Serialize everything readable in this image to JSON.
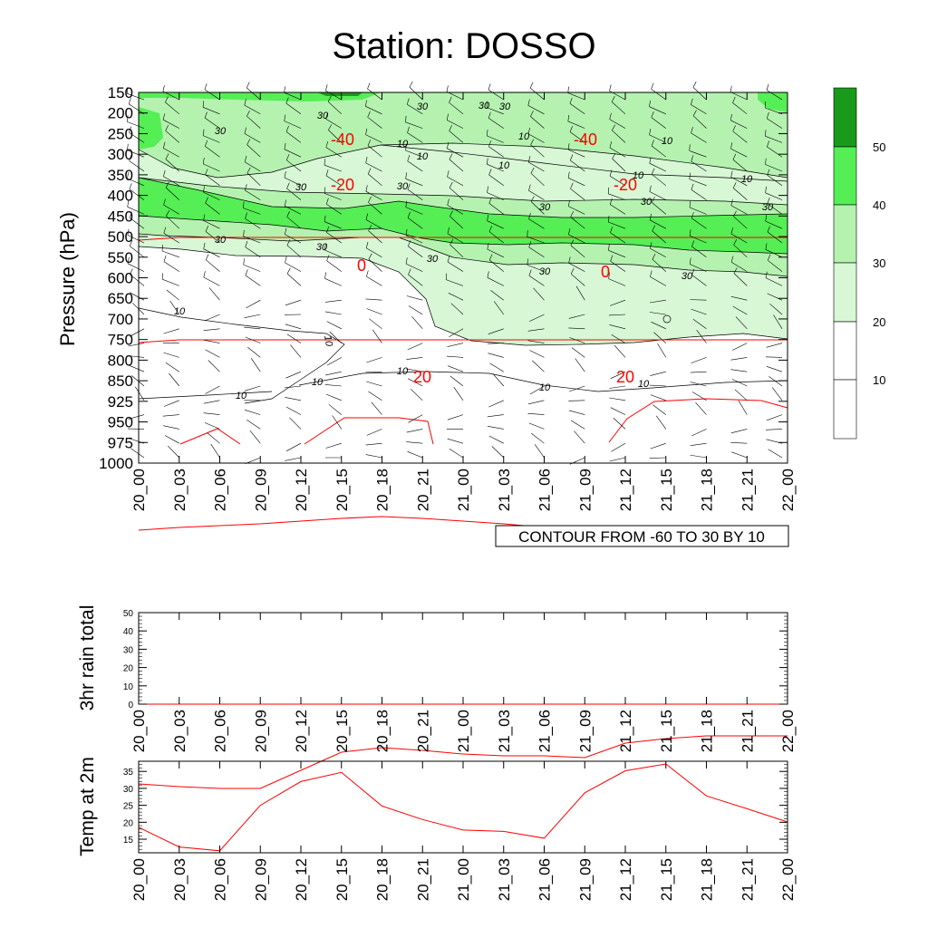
{
  "chart_data": [
    {
      "type": "heatmap",
      "title": "Station: DOSSO",
      "ylabel": "Pressure (hPa)",
      "y_ticks": [
        150,
        200,
        250,
        300,
        350,
        400,
        450,
        500,
        550,
        600,
        650,
        700,
        750,
        800,
        850,
        925,
        950,
        975,
        1000
      ],
      "x_ticks": [
        "20_00",
        "20_03",
        "20_06",
        "20_09",
        "20_12",
        "20_15",
        "20_18",
        "20_21",
        "21_00",
        "21_03",
        "21_06",
        "21_09",
        "21_12",
        "21_15",
        "21_18",
        "21_21",
        "22_00"
      ],
      "info_label": "CONTOUR FROM -60 TO 30 BY 10",
      "shading_colors": [
        "#ffffff",
        "#ffffff",
        "#d7f7d5",
        "#b5f2b0",
        "#55ee55",
        "#1a9a1a"
      ],
      "colorbar_ticks": [
        10,
        20,
        30,
        40,
        50
      ],
      "wind_contour_labels": [
        "10",
        "30"
      ],
      "temperature_contours": [
        {
          "label": "-40",
          "y": [
            265,
            262,
            262,
            262,
            262,
            262,
            262,
            262,
            262,
            262,
            262,
            262,
            262,
            262,
            262,
            262,
            262
          ]
        },
        {
          "label": "-20",
          "y": [
            378,
            375,
            375,
            375,
            375,
            375,
            375,
            375,
            375,
            375,
            375,
            375,
            375,
            375,
            375,
            375,
            375
          ]
        },
        {
          "label": "0",
          "y": [
            585,
            582,
            580,
            578,
            575,
            572,
            570,
            572,
            575,
            578,
            582,
            585,
            587,
            587,
            587,
            587,
            587
          ]
        },
        {
          "label": "20",
          "y": [
            865,
            868,
            870,
            870,
            850,
            830,
            825,
            828,
            832,
            834,
            834,
            836,
            820,
            815,
            812,
            812,
            812
          ]
        }
      ],
      "temperature_contour_color": "#ff0000",
      "contour_line_color": "#000000"
    },
    {
      "type": "line",
      "ylabel": "3hr rain total",
      "ylim": [
        0,
        50
      ],
      "y_ticks": [
        0,
        10,
        20,
        30,
        40,
        50
      ],
      "x": [
        "20_00",
        "20_03",
        "20_06",
        "20_09",
        "20_12",
        "20_15",
        "20_18",
        "20_21",
        "21_00",
        "21_03",
        "21_06",
        "21_09",
        "21_12",
        "21_15",
        "21_18",
        "21_21",
        "22_00"
      ],
      "values": [
        0,
        0,
        0,
        0,
        0,
        0,
        0,
        0,
        0,
        0,
        0,
        0,
        0,
        0,
        0,
        0,
        0
      ]
    },
    {
      "type": "line",
      "ylabel": "Temp at 2m",
      "ylim": [
        11,
        38
      ],
      "y_ticks": [
        15,
        20,
        25,
        30,
        35
      ],
      "x": [
        "20_00",
        "20_03",
        "20_06",
        "20_09",
        "20_12",
        "20_15",
        "20_18",
        "20_21",
        "21_00",
        "21_03",
        "21_06",
        "21_09",
        "21_12",
        "21_15",
        "21_18",
        "21_21",
        "22_00"
      ],
      "values": [
        18.5,
        12.7,
        11.6,
        25,
        32,
        34.7,
        24.8,
        20.8,
        17.7,
        17.3,
        15.3,
        28.7,
        35.2,
        37.2,
        27.8,
        24,
        20.1
      ],
      "line_color": "#ff0000"
    }
  ]
}
